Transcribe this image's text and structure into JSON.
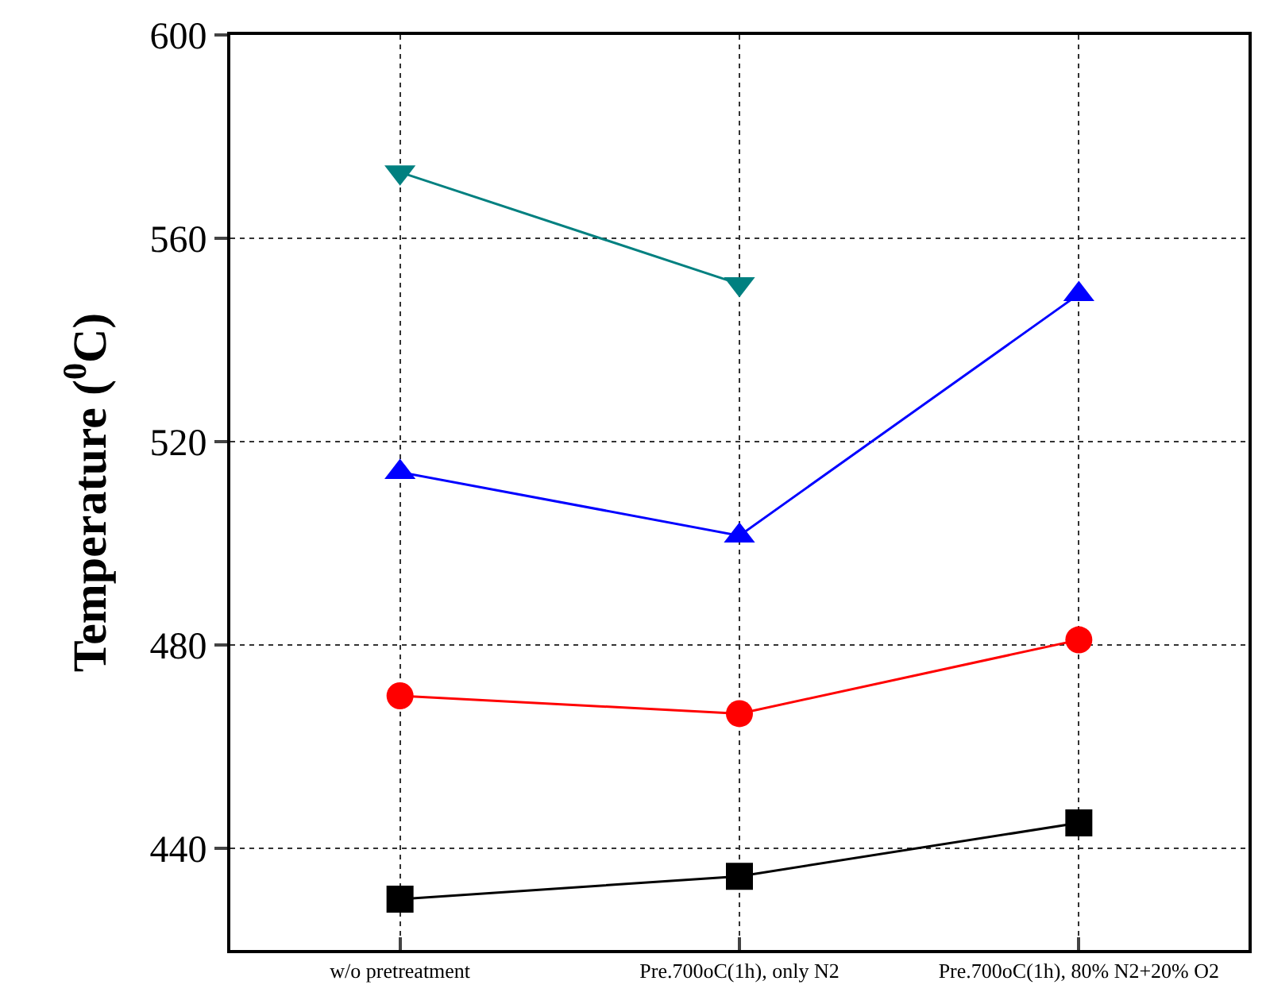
{
  "chart_data": {
    "type": "line",
    "ylabel": "Temperature ($^{0}$C)",
    "categories": [
      "w/o pretreatment",
      "Pre.700oC(1h), only N2",
      "Pre.700oC(1h), 80% N2+20% O2"
    ],
    "series": [
      {
        "color": "#000000",
        "marker": "square",
        "values": [
          430,
          434.5,
          445
        ]
      },
      {
        "color": "#ff0000",
        "marker": "circle",
        "values": [
          470,
          466.5,
          481
        ]
      },
      {
        "color": "#0000ff",
        "marker": "triangle",
        "values": [
          514,
          501.5,
          549
        ]
      },
      {
        "color": "#008080",
        "marker": "triangle-down",
        "values": [
          573,
          551,
          null
        ]
      }
    ],
    "ylim": [
      420,
      600
    ],
    "yticks": [
      440,
      480,
      520,
      560,
      600
    ],
    "grid": true,
    "line_style": "solid"
  }
}
